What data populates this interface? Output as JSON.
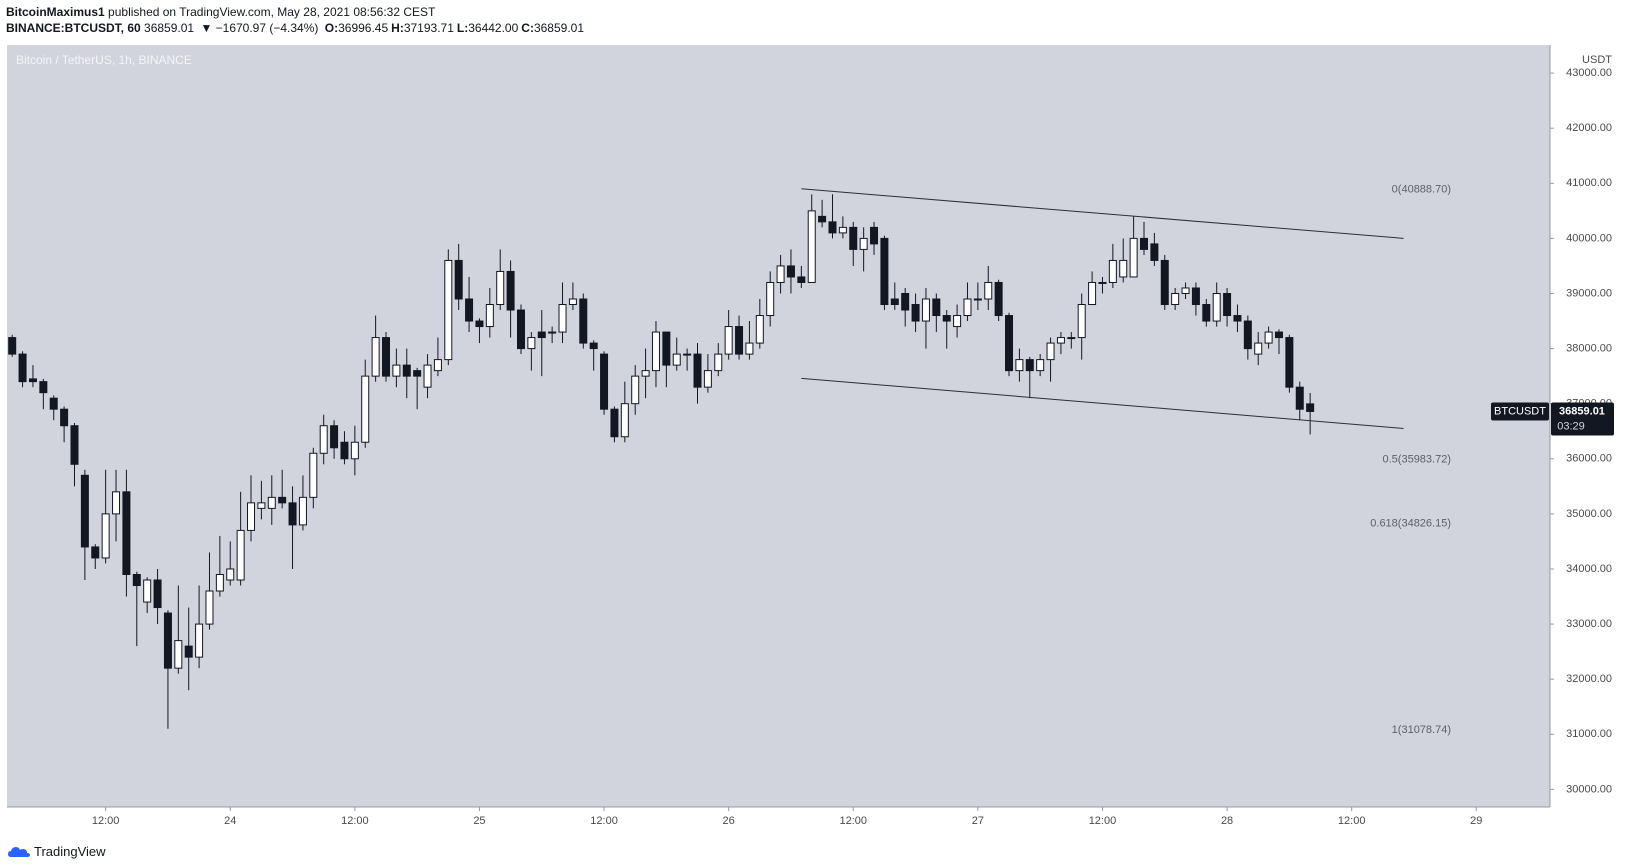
{
  "header": {
    "author": "BitcoinMaximus1",
    "published": "published on TradingView.com, May 28, 2021 08:56:32 CEST",
    "symbol": "BINANCE:BTCUSDT, 60",
    "price": "36859.01",
    "change": "▼ −1670.97 (−4.34%)",
    "ohlc": [
      {
        "key": "O:",
        "value": "36996.45"
      },
      {
        "key": "H:",
        "value": "37193.71"
      },
      {
        "key": "L:",
        "value": "36442.00"
      },
      {
        "key": "C:",
        "value": "36859.01"
      }
    ]
  },
  "chart_data": {
    "type": "candlestick",
    "legend": "Bitcoin / TetherUS, 1h, BINANCE",
    "y_axis_unit": "USDT",
    "bull_color": "#ffffff",
    "bear_color": "#131722",
    "wick_color": "#131722",
    "grid": false,
    "open": [
      38200,
      37900,
      37450,
      37400,
      37100,
      36900,
      36600,
      35700,
      34400,
      34200,
      35000,
      35400,
      33900,
      33400,
      33800,
      33200,
      32200,
      32600,
      32400,
      33000,
      33600,
      33800,
      33800,
      34700,
      35100,
      35100,
      35300,
      35200,
      34800,
      35300,
      36100,
      36600,
      36300,
      36000,
      36300,
      37500,
      38200,
      37500,
      37700,
      37600,
      37300,
      37600,
      37800,
      39600,
      38900,
      38500,
      38400,
      38800,
      39400,
      38700,
      38000,
      38300,
      38300,
      38300,
      38800,
      38900,
      38100,
      37900,
      36900,
      36400,
      37000,
      37500,
      37600,
      38300,
      37700,
      37900,
      37900,
      37300,
      37600,
      37900,
      38400,
      37900,
      38100,
      38600,
      39200,
      39500,
      39300,
      39200,
      40400,
      40300,
      40100,
      40200,
      39800,
      40200,
      40000,
      38900,
      39000,
      38800,
      38500,
      38900,
      38600,
      38400,
      38600,
      38900,
      38900,
      39200,
      38600,
      37600,
      37800,
      37600,
      37800,
      38100,
      38200,
      38200,
      38800,
      39200,
      39200,
      39300,
      39300,
      40000,
      39900,
      39600,
      38800,
      39000,
      39100,
      38800,
      38500,
      39000,
      38600,
      38500,
      37900,
      38100,
      38300,
      38200,
      37300,
      36996.45
    ],
    "high": [
      38250,
      37950,
      37700,
      37450,
      37150,
      36950,
      36650,
      35800,
      34450,
      35800,
      35800,
      35800,
      33950,
      33850,
      34000,
      33250,
      33700,
      33300,
      33700,
      34300,
      34600,
      34500,
      35400,
      35700,
      35600,
      35700,
      35800,
      35500,
      35700,
      36200,
      36800,
      36700,
      36500,
      36600,
      37800,
      38600,
      38300,
      38000,
      38000,
      37650,
      37900,
      38200,
      39800,
      39900,
      39300,
      38550,
      39100,
      39800,
      39600,
      38800,
      38300,
      38700,
      38400,
      39200,
      39200,
      39000,
      38150,
      37950,
      36950,
      37400,
      37700,
      38000,
      38500,
      38300,
      38200,
      38000,
      38100,
      37900,
      38100,
      38700,
      38600,
      38500,
      38900,
      39400,
      39700,
      39800,
      39500,
      40800,
      40700,
      40800,
      40400,
      40300,
      40200,
      40300,
      40050,
      39200,
      39100,
      39000,
      39100,
      39000,
      38700,
      38800,
      39200,
      39200,
      39500,
      39250,
      38650,
      38000,
      37850,
      37900,
      38200,
      38300,
      38300,
      39000,
      39400,
      39300,
      39900,
      40000,
      40400,
      40300,
      40100,
      39700,
      39100,
      39200,
      39200,
      38900,
      39200,
      39100,
      38800,
      38600,
      38300,
      38400,
      38350,
      38250,
      37400,
      37193.71
    ],
    "low": [
      37850,
      37300,
      37300,
      36900,
      36700,
      36300,
      35500,
      33800,
      34000,
      34100,
      34500,
      33500,
      32600,
      33200,
      33000,
      31100,
      32100,
      31800,
      32200,
      32900,
      33500,
      33700,
      33700,
      34500,
      34900,
      34800,
      35100,
      34000,
      34700,
      35100,
      35900,
      36000,
      35900,
      35700,
      36200,
      37400,
      37400,
      37300,
      37100,
      36900,
      37100,
      37500,
      37700,
      38700,
      38300,
      38100,
      38200,
      38700,
      38200,
      37900,
      37600,
      37500,
      38100,
      38100,
      38700,
      38000,
      37600,
      36800,
      36300,
      36300,
      36800,
      37100,
      37300,
      37300,
      37600,
      37600,
      37000,
      37200,
      37500,
      37800,
      37800,
      37800,
      38000,
      38400,
      39000,
      39000,
      39100,
      39200,
      40200,
      40000,
      40000,
      39500,
      39400,
      39700,
      38700,
      38700,
      38400,
      38300,
      38000,
      38300,
      38000,
      38200,
      38500,
      38700,
      38700,
      38500,
      37500,
      37400,
      37100,
      37500,
      37400,
      37900,
      38000,
      37800,
      38800,
      39000,
      39100,
      39200,
      39300,
      39700,
      39500,
      38700,
      38700,
      38900,
      38600,
      38400,
      38400,
      38400,
      38300,
      37800,
      37700,
      38000,
      37900,
      37200,
      36700,
      36442
    ],
    "close": [
      37900,
      37400,
      37400,
      37200,
      36900,
      36600,
      35900,
      34400,
      34200,
      35000,
      35400,
      33900,
      33700,
      33800,
      33300,
      32200,
      32700,
      32400,
      33000,
      33600,
      33900,
      34000,
      34700,
      35200,
      35200,
      35300,
      35200,
      34800,
      35300,
      36100,
      36600,
      36200,
      36000,
      36300,
      37500,
      38200,
      37500,
      37700,
      37500,
      37500,
      37700,
      37800,
      39600,
      38900,
      38500,
      38400,
      38800,
      39400,
      38700,
      38000,
      38200,
      38200,
      38300,
      38800,
      38900,
      38100,
      38000,
      36900,
      36400,
      37000,
      37500,
      37600,
      38300,
      37700,
      37900,
      37900,
      37300,
      37600,
      37900,
      38400,
      37900,
      38100,
      38600,
      39200,
      39500,
      39300,
      39200,
      40500,
      40300,
      40100,
      40200,
      39800,
      40000,
      39900,
      38800,
      38800,
      38700,
      38500,
      38900,
      38600,
      38500,
      38600,
      38900,
      38900,
      39200,
      38600,
      37600,
      37800,
      37600,
      37800,
      38100,
      38200,
      38200,
      38800,
      39200,
      39200,
      39600,
      39600,
      40000,
      39800,
      39600,
      38800,
      39000,
      39100,
      38800,
      38500,
      39000,
      38600,
      38500,
      38000,
      38100,
      38300,
      38200,
      37300,
      36900,
      36859.01
    ],
    "xlim": [
      -0.5,
      148.1
    ],
    "xticks": [
      {
        "value": 9,
        "label": "12:00"
      },
      {
        "value": 21,
        "label": "24"
      },
      {
        "value": 33,
        "label": "12:00"
      },
      {
        "value": 45,
        "label": "25"
      },
      {
        "value": 57,
        "label": "12:00"
      },
      {
        "value": 69,
        "label": "26"
      },
      {
        "value": 81,
        "label": "12:00"
      },
      {
        "value": 93,
        "label": "27"
      },
      {
        "value": 105,
        "label": "12:00"
      },
      {
        "value": 117,
        "label": "28"
      },
      {
        "value": 129,
        "label": "12:00"
      },
      {
        "value": 141,
        "label": "29"
      }
    ],
    "ylim": [
      29680,
      43510
    ],
    "yticks": [
      {
        "value": 30000,
        "label": "30000.00"
      },
      {
        "value": 31000,
        "label": "31000.00"
      },
      {
        "value": 32000,
        "label": "32000.00"
      },
      {
        "value": 33000,
        "label": "33000.00"
      },
      {
        "value": 34000,
        "label": "34000.00"
      },
      {
        "value": 35000,
        "label": "35000.00"
      },
      {
        "value": 36000,
        "label": "36000.00"
      },
      {
        "value": 37000,
        "label": "37000.00"
      },
      {
        "value": 38000,
        "label": "38000.00"
      },
      {
        "value": 39000,
        "label": "39000.00"
      },
      {
        "value": 40000,
        "label": "40000.00"
      },
      {
        "value": 41000,
        "label": "41000.00"
      },
      {
        "value": 42000,
        "label": "42000.00"
      },
      {
        "value": 43000,
        "label": "43000.00"
      }
    ],
    "fib_levels": [
      {
        "label": "0(40888.70)",
        "value": 40888.7
      },
      {
        "label": "0.5(35983.72)",
        "value": 35983.72
      },
      {
        "label": "0.618(34826.15)",
        "value": 34826.15
      },
      {
        "label": "1(31078.74)",
        "value": 31078.74
      }
    ],
    "trendlines": [
      {
        "x": [
          76,
          134
        ],
        "y": [
          40900,
          40000
        ]
      },
      {
        "x": [
          76,
          134
        ],
        "y": [
          37460,
          36550
        ]
      }
    ],
    "last_price": {
      "symbol": "BTCUSDT",
      "value": 36859.01,
      "countdown": "03:29"
    }
  },
  "footer": {
    "brand": "TradingView"
  }
}
